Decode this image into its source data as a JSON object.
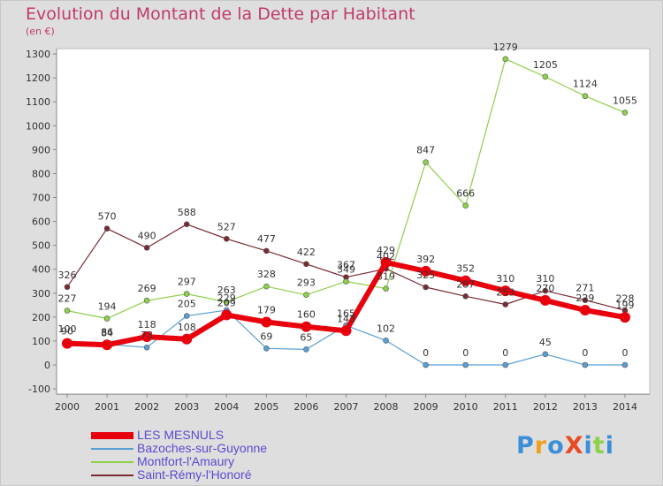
{
  "chart_data": {
    "type": "line",
    "title": "Evolution du Montant de la Dette par Habitant",
    "subtitle": "(en €)",
    "x": [
      "2000",
      "2001",
      "2002",
      "2003",
      "2004",
      "2005",
      "2006",
      "2007",
      "2008",
      "2009",
      "2010",
      "2011",
      "2012",
      "2013",
      "2014"
    ],
    "ylim": [
      -100,
      1300
    ],
    "yticks": [
      -100,
      0,
      100,
      200,
      300,
      400,
      500,
      600,
      700,
      800,
      900,
      1000,
      1100,
      1200,
      1300
    ],
    "grid": false,
    "legend_position": "bottom-left",
    "series": [
      {
        "name": "LES MESNULS",
        "color": "#e8000c",
        "values": [
          90,
          84,
          118,
          108,
          209,
          179,
          160,
          143,
          429,
          392,
          352,
          310,
          270,
          229,
          199
        ]
      },
      {
        "name": "Bazoches-sur-Guyonne",
        "color": "#5a9fd4",
        "values": [
          100,
          86,
          73,
          205,
          229,
          69,
          65,
          165,
          102,
          0,
          0,
          0,
          45,
          0,
          0
        ]
      },
      {
        "name": "Montfort-l'Amaury",
        "color": "#8ed04a",
        "values": [
          227,
          194,
          269,
          297,
          263,
          328,
          293,
          349,
          319,
          847,
          666,
          1279,
          1205,
          1124,
          1055
        ]
      },
      {
        "name": "Saint-Rémy-l'Honoré",
        "color": "#7a2a32",
        "values": [
          326,
          570,
          490,
          588,
          527,
          477,
          422,
          367,
          402,
          325,
          287,
          253,
          310,
          271,
          228
        ]
      }
    ]
  },
  "logo": {
    "text": "ProXiti",
    "colors": [
      "#3b8ed8",
      "#f0a020",
      "#3b8ed8",
      "#e84a24",
      "#3b8ed8",
      "#8ed04a",
      "#3b8ed8"
    ]
  }
}
